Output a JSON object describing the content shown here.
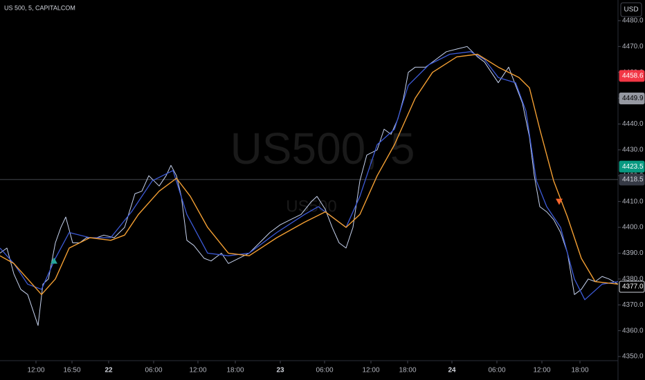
{
  "chart_data": {
    "type": "line",
    "title": "US 500, 5, CAPITALCOM",
    "currency": "USD",
    "watermark": "US500, 5",
    "watermark_sub": "US500",
    "xlim": [
      0,
      893
    ],
    "ylim": [
      4348.4,
      4488
    ],
    "yticks": [
      {
        "value": 4350,
        "label": "4350.0"
      },
      {
        "value": 4360,
        "label": "4360.0"
      },
      {
        "value": 4370,
        "label": "4370.0"
      },
      {
        "value": 4380,
        "label": "4380.0"
      },
      {
        "value": 4390,
        "label": "4390.0"
      },
      {
        "value": 4400,
        "label": "4400.0"
      },
      {
        "value": 4410,
        "label": "4410.0"
      },
      {
        "value": 4420,
        "label": "4420.0"
      },
      {
        "value": 4430,
        "label": "4430.0"
      },
      {
        "value": 4440,
        "label": "4440.0"
      },
      {
        "value": 4450,
        "label": "4450.0"
      },
      {
        "value": 4460,
        "label": "4460.0"
      },
      {
        "value": 4470,
        "label": "4470.0"
      },
      {
        "value": 4480,
        "label": "4480.0"
      }
    ],
    "xticks": [
      {
        "value": 52,
        "label": "12:00"
      },
      {
        "value": 104,
        "label": "16:50"
      },
      {
        "value": 157,
        "label": "22"
      },
      {
        "value": 222,
        "label": "06:00"
      },
      {
        "value": 286,
        "label": "12:00"
      },
      {
        "value": 340,
        "label": "18:00"
      },
      {
        "value": 405,
        "label": "23"
      },
      {
        "value": 469,
        "label": "06:00"
      },
      {
        "value": 536,
        "label": "12:00"
      },
      {
        "value": 589,
        "label": "18:00"
      },
      {
        "value": 653,
        "label": "24"
      },
      {
        "value": 718,
        "label": "06:00"
      },
      {
        "value": 783,
        "label": "12:00"
      },
      {
        "value": 838,
        "label": "18:00"
      }
    ],
    "series": [
      {
        "color": "#c8d4f0",
        "width": 1,
        "x": [
          0,
          10,
          20,
          30,
          40,
          50,
          55,
          62,
          70,
          80,
          88,
          95,
          105,
          115,
          125,
          140,
          150,
          165,
          180,
          195,
          205,
          215,
          230,
          240,
          247,
          255,
          262,
          270,
          280,
          295,
          305,
          320,
          330,
          345,
          360,
          375,
          390,
          405,
          420,
          435,
          450,
          458,
          470,
          480,
          490,
          500,
          510,
          520,
          530,
          545,
          555,
          565,
          575,
          583,
          590,
          600,
          615,
          630,
          645,
          660,
          675,
          690,
          700,
          710,
          720,
          735,
          745,
          755,
          765,
          772,
          780,
          790,
          800,
          810,
          820,
          830,
          840,
          850,
          860,
          870,
          880,
          893
        ],
        "values": [
          4390,
          4392,
          4382,
          4376,
          4374,
          4366,
          4362,
          4378,
          4380,
          4394,
          4400,
          4404,
          4394,
          4394,
          4396,
          4396,
          4397,
          4396,
          4400,
          4413,
          4414,
          4420,
          4416,
          4420,
          4424,
          4420,
          4412,
          4395,
          4393,
          4388,
          4387,
          4390,
          4386,
          4388,
          4390,
          4394,
          4398,
          4401,
          4403,
          4405,
          4410,
          4412,
          4407,
          4400,
          4394,
          4392,
          4400,
          4418,
          4428,
          4430,
          4438,
          4436,
          4442,
          4450,
          4460,
          4462,
          4462,
          4465,
          4468,
          4469,
          4470,
          4466,
          4464,
          4460,
          4456,
          4462,
          4455,
          4448,
          4435,
          4420,
          4408,
          4406,
          4403,
          4398,
          4390,
          4374,
          4376,
          4380,
          4379,
          4381,
          4380,
          4378
        ]
      },
      {
        "color": "#3d5bd9",
        "width": 1.3,
        "x": [
          0,
          20,
          40,
          60,
          80,
          100,
          130,
          160,
          190,
          220,
          250,
          270,
          300,
          330,
          360,
          400,
          440,
          460,
          480,
          500,
          520,
          545,
          570,
          590,
          620,
          650,
          680,
          700,
          720,
          745,
          760,
          775,
          790,
          810,
          830,
          845,
          870,
          893
        ],
        "values": [
          4392,
          4386,
          4378,
          4376,
          4388,
          4398,
          4396,
          4396,
          4406,
          4418,
          4422,
          4405,
          4390,
          4389,
          4390,
          4398,
          4405,
          4408,
          4404,
          4400,
          4412,
          4432,
          4438,
          4455,
          4463,
          4467,
          4468,
          4465,
          4458,
          4456,
          4445,
          4418,
          4408,
          4400,
          4380,
          4372,
          4378,
          4379
        ]
      },
      {
        "color": "#f5a033",
        "width": 1.4,
        "x": [
          0,
          20,
          40,
          60,
          80,
          100,
          130,
          160,
          180,
          200,
          230,
          255,
          275,
          300,
          330,
          360,
          400,
          440,
          470,
          500,
          520,
          545,
          570,
          600,
          625,
          660,
          690,
          720,
          750,
          765,
          780,
          800,
          820,
          840,
          860,
          893
        ],
        "values": [
          4389,
          4386,
          4380,
          4374,
          4380,
          4392,
          4396,
          4395,
          4397,
          4405,
          4414,
          4419,
          4412,
          4400,
          4390,
          4389,
          4396,
          4402,
          4406,
          4400,
          4405,
          4420,
          4432,
          4450,
          4460,
          4466,
          4467,
          4462,
          4458,
          4454,
          4438,
          4418,
          4404,
          4388,
          4379,
          4378
        ]
      }
    ],
    "markers": [
      {
        "x": 78,
        "value": 4387,
        "color": "#26a69a",
        "direction": "up"
      },
      {
        "x": 808,
        "value": 4410,
        "color": "#f7652d",
        "direction": "down"
      }
    ],
    "crosshair": 4418.5,
    "price_labels": [
      {
        "value": 4458.6,
        "label": "4458.6",
        "color": "#f23645",
        "text_color": "#ffffff"
      },
      {
        "value": 4449.9,
        "label": "4449.9",
        "color": "#9598a1",
        "text_color": "#000000"
      },
      {
        "value": 4423.5,
        "label": "4423.5",
        "color": "#089981",
        "text_color": "#ffffff"
      },
      {
        "value": 4418.5,
        "label": "4418.5",
        "color": "#363a45",
        "text_color": "#d1d4dc"
      },
      {
        "value": 4377.0,
        "label": "4377.0",
        "color": "#000000",
        "text_color": "#ffffff"
      }
    ]
  }
}
